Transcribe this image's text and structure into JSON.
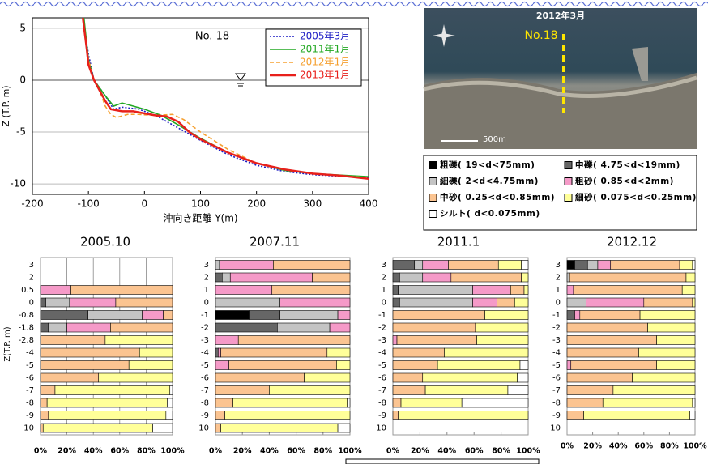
{
  "chart_data": [
    {
      "type": "line",
      "annotation": "No. 18",
      "xlabel": "沖向き距離 Y(m)",
      "ylabel": "Z (T.P. m)",
      "xlim": [
        -200,
        400
      ],
      "ylim": [
        -11,
        6
      ],
      "xticks": [
        -200,
        -100,
        0,
        100,
        200,
        300,
        400
      ],
      "yticks": [
        -10,
        -5,
        0,
        5
      ],
      "grid": "y",
      "legend": "top-right",
      "series": [
        {
          "name": "2005年3月",
          "color": "#1c1cc4",
          "style": "dotted",
          "x": [
            -110,
            -100,
            -90,
            -70,
            -55,
            -40,
            -10,
            20,
            60,
            100,
            150,
            200,
            250,
            300,
            400
          ],
          "values": [
            6,
            2.5,
            0,
            -1.5,
            -2.8,
            -2.6,
            -2.8,
            -3.4,
            -4.6,
            -5.8,
            -7.2,
            -8.2,
            -8.8,
            -9.1,
            -9.4
          ]
        },
        {
          "name": "2011年1月",
          "color": "#22a822",
          "style": "solid",
          "x": [
            -108,
            -100,
            -90,
            -70,
            -55,
            -40,
            -20,
            0,
            30,
            60,
            100,
            150,
            200,
            250,
            300,
            400
          ],
          "values": [
            6,
            2,
            0,
            -1.5,
            -2.5,
            -2.2,
            -2.5,
            -2.8,
            -3.4,
            -4.3,
            -5.6,
            -7,
            -8,
            -8.7,
            -9,
            -9.3
          ]
        },
        {
          "name": "2012年1月",
          "color": "#f5a030",
          "style": "dashed",
          "x": [
            -110,
            -100,
            -90,
            -80,
            -70,
            -60,
            -50,
            -30,
            -10,
            20,
            50,
            70,
            100,
            150,
            200,
            250,
            300,
            400
          ],
          "values": [
            6,
            2,
            0,
            -1,
            -2.5,
            -3.3,
            -3.6,
            -3.3,
            -3.3,
            -3.4,
            -3.3,
            -3.8,
            -5,
            -6.7,
            -8,
            -8.6,
            -9,
            -9.4
          ]
        },
        {
          "name": "2013年1月",
          "color": "#e8201b",
          "style": "solid",
          "x": [
            -110,
            -103,
            -100,
            -90,
            -80,
            -70,
            -60,
            -40,
            -20,
            0,
            20,
            40,
            60,
            80,
            100,
            150,
            200,
            250,
            300,
            350,
            400
          ],
          "values": [
            6,
            3,
            1.5,
            0,
            -1,
            -2,
            -2.8,
            -3,
            -3,
            -3.2,
            -3.4,
            -3.5,
            -4,
            -5,
            -5.7,
            -7,
            -8,
            -8.6,
            -9,
            -9.2,
            -9.5
          ]
        }
      ]
    },
    {
      "type": "stacked-barh",
      "title": "2005.10",
      "ylabel": "Z(T.P. m)",
      "grid": true,
      "xlim": [
        0,
        100
      ],
      "xticks": [
        {
          "value": 0,
          "label": "0%"
        },
        {
          "value": 20,
          "label": "20%"
        },
        {
          "value": 40,
          "label": "40%"
        },
        {
          "value": 60,
          "label": "60%"
        },
        {
          "value": 80,
          "label": "80%"
        },
        {
          "value": 100,
          "label": "100%"
        }
      ],
      "categories": [
        "3",
        "2",
        "0.5",
        "0",
        "-0.8",
        "-1.8",
        "-2.8",
        "-4",
        "-5",
        "-6",
        "-7",
        "-8",
        "-9",
        "-10"
      ],
      "series": [
        {
          "values": [
            null,
            null,
            0,
            0,
            0,
            0,
            0,
            0,
            0,
            0,
            0,
            0,
            0,
            0
          ]
        },
        {
          "values": [
            null,
            null,
            0,
            4,
            36,
            6,
            0,
            0,
            0,
            0,
            0,
            0,
            0,
            0
          ]
        },
        {
          "values": [
            null,
            null,
            0,
            18,
            41,
            14,
            0,
            0,
            0,
            0,
            0,
            0,
            0,
            0
          ]
        },
        {
          "values": [
            null,
            null,
            23,
            35,
            16,
            33,
            0,
            0,
            0,
            0,
            0,
            0,
            0,
            0
          ]
        },
        {
          "values": [
            null,
            null,
            77,
            43,
            7,
            47,
            49,
            75,
            67,
            44,
            11,
            5,
            6,
            2
          ]
        },
        {
          "values": [
            null,
            null,
            0,
            0,
            0,
            0,
            51,
            25,
            33,
            56,
            87,
            91,
            89,
            83
          ]
        },
        {
          "values": [
            null,
            null,
            0,
            0,
            0,
            0,
            0,
            0,
            0,
            0,
            2,
            4,
            5,
            15
          ]
        }
      ]
    },
    {
      "type": "stacked-barh",
      "title": "2007.11",
      "grid": false,
      "xlim": [
        0,
        100
      ],
      "xticks": [
        {
          "value": 0,
          "label": "0%"
        },
        {
          "value": 20,
          "label": "20%"
        },
        {
          "value": 40,
          "label": "40%"
        },
        {
          "value": 60,
          "label": "60%"
        },
        {
          "value": 80,
          "label": "80%"
        },
        {
          "value": 100,
          "label": "100%"
        }
      ],
      "categories": [
        "3",
        "2",
        "1",
        "0",
        "-1",
        "-2",
        "-3",
        "-4",
        "-5",
        "-6",
        "-7",
        "-8",
        "-9",
        "-10"
      ],
      "series": [
        {
          "values": [
            0,
            0,
            0,
            0,
            25,
            0,
            0,
            0,
            0,
            0,
            0,
            0,
            0,
            0
          ]
        },
        {
          "values": [
            0,
            5,
            0,
            0,
            23,
            46,
            0,
            2,
            0,
            0,
            0,
            0,
            0,
            0
          ]
        },
        {
          "values": [
            3,
            6,
            0,
            48,
            43,
            39,
            0,
            0,
            0,
            0,
            0,
            0,
            0,
            0
          ]
        },
        {
          "values": [
            40,
            61,
            42,
            52,
            9,
            15,
            17,
            2,
            10,
            0,
            0,
            0,
            0,
            0
          ]
        },
        {
          "values": [
            57,
            28,
            58,
            0,
            0,
            0,
            83,
            79,
            80,
            66,
            40,
            13,
            7,
            4
          ]
        },
        {
          "values": [
            0,
            0,
            0,
            0,
            0,
            0,
            0,
            17,
            10,
            34,
            60,
            85,
            93,
            87
          ]
        },
        {
          "values": [
            0,
            0,
            0,
            0,
            0,
            0,
            0,
            0,
            0,
            0,
            0,
            2,
            0,
            9
          ]
        }
      ]
    },
    {
      "type": "stacked-barh",
      "title": "2011.1",
      "grid": false,
      "xlim": [
        0,
        100
      ],
      "xticks": [
        {
          "value": 0,
          "label": "0%"
        },
        {
          "value": 20,
          "label": "20%"
        },
        {
          "value": 40,
          "label": "40%"
        },
        {
          "value": 60,
          "label": "60%"
        },
        {
          "value": 80,
          "label": "80%"
        },
        {
          "value": 100,
          "label": "100%"
        }
      ],
      "categories": [
        "3",
        "2",
        "1",
        "0",
        "-1",
        "-2",
        "-3",
        "-4",
        "-5",
        "-6",
        "-7",
        "-8",
        "-9",
        "-10"
      ],
      "series": [
        {
          "values": [
            0,
            0,
            0,
            0,
            0,
            0,
            0,
            0,
            0,
            0,
            0,
            0,
            0,
            null
          ]
        },
        {
          "values": [
            16,
            5,
            4,
            5,
            0,
            0,
            0,
            0,
            0,
            0,
            0,
            0,
            0,
            null
          ]
        },
        {
          "values": [
            6,
            17,
            55,
            54,
            0,
            0,
            0,
            0,
            0,
            0,
            0,
            0,
            0,
            null
          ]
        },
        {
          "values": [
            19,
            21,
            28,
            18,
            0,
            0,
            3,
            0,
            0,
            0,
            0,
            0,
            0,
            null
          ]
        },
        {
          "values": [
            37,
            52,
            10,
            13,
            68,
            61,
            59,
            38,
            33,
            22,
            24,
            6,
            4,
            null
          ]
        },
        {
          "values": [
            17,
            5,
            3,
            10,
            32,
            39,
            38,
            62,
            61,
            70,
            61,
            45,
            96,
            null
          ]
        },
        {
          "values": [
            5,
            0,
            0,
            0,
            0,
            0,
            0,
            0,
            6,
            8,
            15,
            49,
            0,
            null
          ]
        }
      ]
    },
    {
      "type": "stacked-barh",
      "title": "2012.12",
      "grid": false,
      "xlim": [
        0,
        100
      ],
      "xticks": [
        {
          "value": 0,
          "label": "0%"
        },
        {
          "value": 20,
          "label": "20%"
        },
        {
          "value": 40,
          "label": "40%"
        },
        {
          "value": 60,
          "label": "60%"
        },
        {
          "value": 80,
          "label": "80%"
        },
        {
          "value": 100,
          "label": "100%"
        }
      ],
      "categories": [
        "3",
        "2",
        "1",
        "0",
        "-1",
        "-2",
        "-3",
        "-4",
        "-5",
        "-6",
        "-7",
        "-8",
        "-9",
        "-10"
      ],
      "series": [
        {
          "values": [
            6,
            0,
            0,
            0,
            0,
            0,
            0,
            0,
            0,
            0,
            0,
            0,
            0,
            null
          ]
        },
        {
          "values": [
            10,
            0,
            0,
            0,
            6,
            0,
            0,
            0,
            0,
            0,
            0,
            0,
            0,
            null
          ]
        },
        {
          "values": [
            8,
            2,
            0,
            15,
            0,
            0,
            0,
            0,
            0,
            0,
            0,
            0,
            0,
            null
          ]
        },
        {
          "values": [
            10,
            0,
            5,
            45,
            4,
            0,
            0,
            0,
            3,
            0,
            0,
            0,
            0,
            null
          ]
        },
        {
          "values": [
            54,
            91,
            85,
            38,
            47,
            63,
            70,
            56,
            67,
            51,
            36,
            28,
            13,
            null
          ]
        },
        {
          "values": [
            10,
            7,
            10,
            2,
            43,
            37,
            30,
            44,
            30,
            49,
            64,
            70,
            83,
            null
          ]
        },
        {
          "values": [
            2,
            0,
            0,
            0,
            0,
            0,
            0,
            0,
            0,
            0,
            0,
            2,
            4,
            null
          ]
        }
      ]
    }
  ],
  "grain_legend": [
    {
      "name": "粗礫( 19<d<75mm)",
      "color": "#000000"
    },
    {
      "name": "中礫( 4.75<d<19mm)",
      "color": "#666666"
    },
    {
      "name": "細礫( 2<d<4.75mm)",
      "color": "#c4c4c4"
    },
    {
      "name": "粗砂( 0.85<d<2mm)",
      "color": "#f59ac8"
    },
    {
      "name": "中砂( 0.25<d<0.85mm)",
      "color": "#fbc491"
    },
    {
      "name": "細砂( 0.075<d<0.25mm)",
      "color": "#ffff99"
    },
    {
      "name": "シルト( d<0.075mm)",
      "color": "#ffffff"
    }
  ],
  "photo": {
    "date": "2012年3月",
    "section": "No.18",
    "scale": "500m"
  }
}
